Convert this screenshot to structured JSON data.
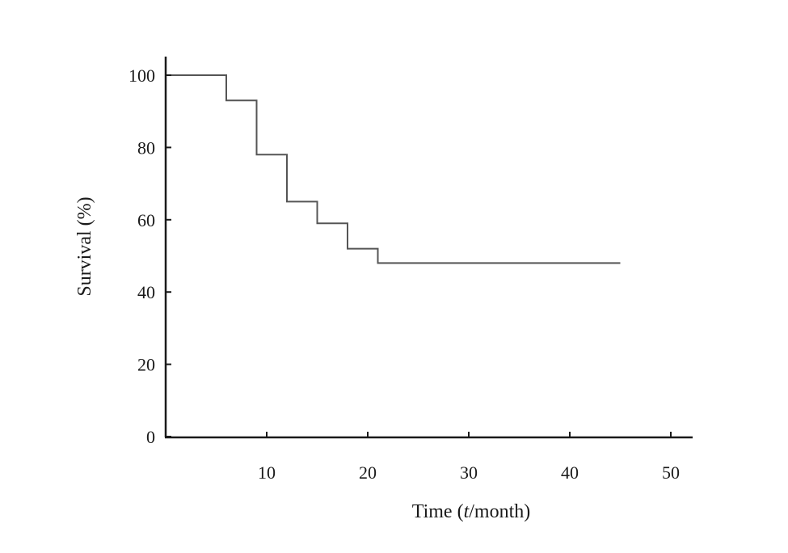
{
  "chart_data": {
    "type": "line",
    "step": true,
    "title": "",
    "xlabel_parts": [
      "Time (",
      "t",
      "/month)"
    ],
    "ylabel": "Survival (%)",
    "xlim": [
      0,
      52
    ],
    "ylim": [
      0,
      105
    ],
    "xticks": [
      10,
      20,
      30,
      40,
      50
    ],
    "yticks": [
      0,
      20,
      40,
      60,
      80,
      100
    ],
    "grid": false,
    "legend": "none",
    "colors": {
      "line": "#555555",
      "axis": "#1a1a1a"
    },
    "series": [
      {
        "x": [
          0,
          6,
          6,
          9,
          9,
          12,
          12,
          15,
          15,
          18,
          18,
          21,
          21,
          45
        ],
        "y": [
          100,
          100,
          93,
          93,
          78,
          78,
          65,
          65,
          59,
          59,
          52,
          52,
          48,
          48
        ]
      }
    ]
  }
}
